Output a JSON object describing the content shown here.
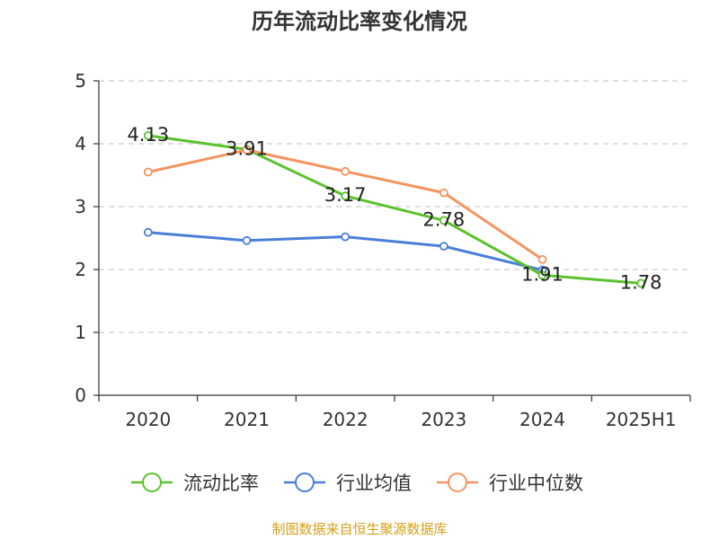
{
  "chart_data": {
    "type": "line",
    "title": "历年流动比率变化情况",
    "categories": [
      "2020",
      "2021",
      "2022",
      "2023",
      "2024",
      "2025H1"
    ],
    "ylim": [
      0,
      5
    ],
    "yticks": [
      "0",
      "1",
      "2",
      "3",
      "4",
      "5"
    ],
    "grid": true,
    "legend_position": "bottom",
    "series": [
      {
        "name": "流动比率",
        "color": "#5cc22c",
        "values": [
          4.13,
          3.91,
          3.17,
          2.78,
          1.91,
          1.78
        ],
        "labels": [
          "4.13",
          "3.91",
          "3.17",
          "2.78",
          "1.91",
          "1.78"
        ]
      },
      {
        "name": "行业均值",
        "color": "#4a7fd8",
        "values": [
          2.59,
          2.46,
          2.52,
          2.37,
          1.99,
          null
        ],
        "labels": []
      },
      {
        "name": "行业中位数",
        "color": "#f59460",
        "values": [
          3.55,
          3.9,
          3.56,
          3.22,
          2.16,
          null
        ],
        "labels": []
      }
    ]
  },
  "footer": "制图数据来自恒生聚源数据库"
}
